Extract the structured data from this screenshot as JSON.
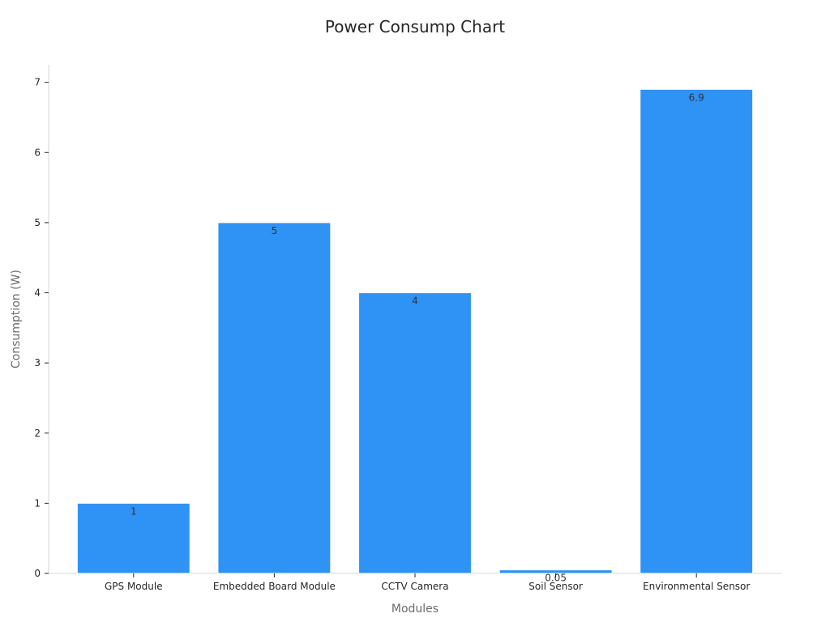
{
  "chart_data": {
    "type": "bar",
    "title": "Power Consump Chart",
    "xlabel": "Modules",
    "ylabel": "Consumption (W)",
    "categories": [
      "GPS Module",
      "Embedded Board Module",
      "CCTV Camera",
      "Soil Sensor",
      "Environmental Sensor"
    ],
    "values": [
      1,
      5,
      4,
      0.05,
      6.9
    ],
    "data_labels": [
      "1",
      "5",
      "4",
      "0.05",
      "6.9"
    ],
    "ylim": [
      0,
      7.25
    ],
    "yticks": [
      0,
      1,
      2,
      3,
      4,
      5,
      6,
      7
    ],
    "bar_color": "#2f92f5",
    "grid": false,
    "legend": "none"
  }
}
